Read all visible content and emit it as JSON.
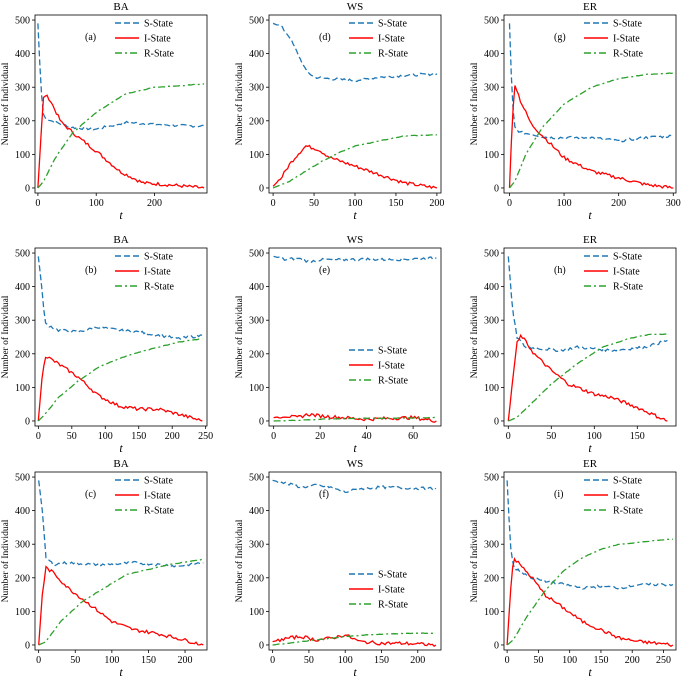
{
  "figure": {
    "ylabel_all": "Number of Individual",
    "xlabel_all": "t"
  },
  "legend_labels": [
    "S-State",
    "I-State",
    "R-State"
  ],
  "colors": {
    "S": "#1f77b4",
    "I": "#ff0000",
    "R": "#2ca02c"
  },
  "chart_data": [
    {
      "type": "line",
      "title": "BA",
      "panel_label": "(a)",
      "xlabel": "t",
      "ylabel": "Number of Individual",
      "xlim": [
        -5,
        290
      ],
      "ylim": [
        -15,
        515
      ],
      "xticks": [
        0,
        100,
        200
      ],
      "yticks": [
        0,
        100,
        200,
        300,
        400,
        500
      ],
      "legend": "top-right",
      "series": [
        {
          "name": "S-State",
          "style": "dashed",
          "x": [
            0,
            5,
            10,
            30,
            60,
            100,
            150,
            200,
            250,
            285
          ],
          "values": [
            490,
            300,
            210,
            195,
            180,
            175,
            195,
            190,
            185,
            185
          ]
        },
        {
          "name": "I-State",
          "style": "solid",
          "x": [
            0,
            5,
            10,
            20,
            40,
            70,
            100,
            140,
            180,
            220,
            285
          ],
          "values": [
            0,
            150,
            280,
            265,
            195,
            150,
            110,
            50,
            15,
            10,
            0
          ]
        },
        {
          "name": "R-State",
          "style": "dashdot",
          "x": [
            0,
            10,
            30,
            60,
            100,
            150,
            200,
            250,
            285
          ],
          "values": [
            0,
            20,
            90,
            165,
            225,
            280,
            300,
            305,
            310
          ]
        }
      ]
    },
    {
      "type": "line",
      "title": "WS",
      "panel_label": "(d)",
      "xlabel": "t",
      "ylabel": "Number of Individual",
      "xlim": [
        -5,
        205
      ],
      "ylim": [
        -15,
        515
      ],
      "xticks": [
        0,
        50,
        100,
        150,
        200
      ],
      "yticks": [
        0,
        100,
        200,
        300,
        400,
        500
      ],
      "legend": "top-right",
      "series": [
        {
          "name": "S-State",
          "style": "dashed",
          "x": [
            0,
            10,
            20,
            30,
            40,
            50,
            70,
            100,
            130,
            160,
            200
          ],
          "values": [
            490,
            480,
            450,
            400,
            350,
            330,
            325,
            320,
            330,
            335,
            340
          ]
        },
        {
          "name": "I-State",
          "style": "solid",
          "x": [
            0,
            10,
            20,
            30,
            40,
            55,
            70,
            100,
            130,
            160,
            200
          ],
          "values": [
            5,
            30,
            70,
            100,
            125,
            115,
            90,
            65,
            40,
            15,
            0
          ]
        },
        {
          "name": "R-State",
          "style": "dashdot",
          "x": [
            0,
            20,
            40,
            60,
            80,
            100,
            130,
            160,
            200
          ],
          "values": [
            0,
            20,
            50,
            80,
            105,
            125,
            140,
            155,
            158
          ]
        }
      ]
    },
    {
      "type": "line",
      "title": "ER",
      "panel_label": "(g)",
      "xlabel": "t",
      "ylabel": "Number of Individual",
      "xlim": [
        -10,
        305
      ],
      "ylim": [
        -15,
        515
      ],
      "xticks": [
        0,
        100,
        200,
        300
      ],
      "yticks": [
        0,
        100,
        200,
        300,
        400,
        500
      ],
      "legend": "top-right",
      "series": [
        {
          "name": "S-State",
          "style": "dashed",
          "x": [
            0,
            5,
            10,
            20,
            40,
            70,
            100,
            150,
            200,
            250,
            300
          ],
          "values": [
            490,
            260,
            180,
            165,
            160,
            150,
            150,
            150,
            140,
            150,
            155
          ]
        },
        {
          "name": "I-State",
          "style": "solid",
          "x": [
            0,
            5,
            10,
            20,
            40,
            70,
            100,
            150,
            200,
            250,
            300
          ],
          "values": [
            0,
            200,
            310,
            260,
            190,
            140,
            90,
            50,
            30,
            10,
            0
          ]
        },
        {
          "name": "R-State",
          "style": "dashdot",
          "x": [
            0,
            10,
            30,
            60,
            100,
            150,
            200,
            250,
            300
          ],
          "values": [
            0,
            20,
            100,
            180,
            250,
            300,
            325,
            338,
            342
          ]
        }
      ]
    },
    {
      "type": "line",
      "title": "BA",
      "panel_label": "(b)",
      "xlabel": "t",
      "ylabel": "Number of Individual",
      "xlim": [
        -5,
        252
      ],
      "ylim": [
        -15,
        515
      ],
      "xticks": [
        0,
        50,
        100,
        150,
        200,
        250
      ],
      "yticks": [
        0,
        100,
        200,
        300,
        400,
        500
      ],
      "legend": "top-right",
      "series": [
        {
          "name": "S-State",
          "style": "dashed",
          "x": [
            0,
            5,
            10,
            30,
            60,
            90,
            120,
            150,
            180,
            210,
            245
          ],
          "values": [
            490,
            400,
            290,
            270,
            265,
            280,
            270,
            265,
            255,
            245,
            255
          ]
        },
        {
          "name": "I-State",
          "style": "solid",
          "x": [
            0,
            5,
            10,
            30,
            60,
            90,
            120,
            150,
            180,
            210,
            245
          ],
          "values": [
            0,
            120,
            195,
            170,
            130,
            75,
            45,
            35,
            35,
            20,
            0
          ]
        },
        {
          "name": "R-State",
          "style": "dashdot",
          "x": [
            0,
            10,
            30,
            60,
            90,
            120,
            150,
            180,
            210,
            245
          ],
          "values": [
            0,
            20,
            70,
            120,
            160,
            185,
            205,
            220,
            235,
            245
          ]
        }
      ]
    },
    {
      "type": "line",
      "title": "WS",
      "panel_label": "(e)",
      "xlabel": "t",
      "ylabel": "Number of Individual",
      "xlim": [
        -2,
        72
      ],
      "ylim": [
        -15,
        515
      ],
      "xticks": [
        0,
        20,
        40,
        60
      ],
      "yticks": [
        0,
        100,
        200,
        300,
        400,
        500
      ],
      "legend": "center-right",
      "series": [
        {
          "name": "S-State",
          "style": "dashed",
          "x": [
            0,
            5,
            10,
            15,
            20,
            30,
            40,
            50,
            60,
            70
          ],
          "values": [
            490,
            480,
            485,
            475,
            480,
            480,
            482,
            480,
            483,
            485
          ]
        },
        {
          "name": "I-State",
          "style": "solid",
          "x": [
            0,
            5,
            10,
            15,
            20,
            30,
            40,
            50,
            60,
            70
          ],
          "values": [
            10,
            15,
            10,
            20,
            15,
            10,
            5,
            8,
            10,
            0
          ]
        },
        {
          "name": "R-State",
          "style": "dashdot",
          "x": [
            0,
            10,
            20,
            30,
            40,
            50,
            60,
            70
          ],
          "values": [
            0,
            2,
            5,
            7,
            8,
            8,
            9,
            10
          ]
        }
      ]
    },
    {
      "type": "line",
      "title": "ER",
      "panel_label": "(h)",
      "xlabel": "t",
      "ylabel": "Number of Individual",
      "xlim": [
        -5,
        195
      ],
      "ylim": [
        -15,
        515
      ],
      "xticks": [
        0,
        50,
        100,
        150
      ],
      "yticks": [
        0,
        100,
        200,
        300,
        400,
        500
      ],
      "legend": "top-right",
      "series": [
        {
          "name": "S-State",
          "style": "dashed",
          "x": [
            0,
            5,
            10,
            20,
            40,
            60,
            80,
            100,
            120,
            140,
            160,
            185
          ],
          "values": [
            490,
            330,
            250,
            220,
            215,
            210,
            220,
            215,
            210,
            215,
            220,
            240
          ]
        },
        {
          "name": "I-State",
          "style": "solid",
          "x": [
            0,
            5,
            10,
            15,
            30,
            50,
            70,
            100,
            120,
            150,
            185
          ],
          "values": [
            0,
            120,
            230,
            255,
            200,
            150,
            110,
            80,
            70,
            40,
            0
          ]
        },
        {
          "name": "R-State",
          "style": "dashdot",
          "x": [
            0,
            10,
            30,
            50,
            80,
            110,
            140,
            165,
            185
          ],
          "values": [
            0,
            10,
            60,
            110,
            170,
            220,
            245,
            258,
            258
          ]
        }
      ]
    },
    {
      "type": "line",
      "title": "BA",
      "panel_label": "(c)",
      "xlabel": "t",
      "ylabel": "Number of Individual",
      "xlim": [
        -5,
        230
      ],
      "ylim": [
        -15,
        515
      ],
      "xticks": [
        0,
        50,
        100,
        150,
        200
      ],
      "yticks": [
        0,
        100,
        200,
        300,
        400,
        500
      ],
      "legend": "top-right",
      "series": [
        {
          "name": "S-State",
          "style": "dashed",
          "x": [
            0,
            5,
            10,
            20,
            40,
            70,
            100,
            130,
            160,
            190,
            225
          ],
          "values": [
            490,
            400,
            260,
            240,
            245,
            240,
            240,
            245,
            240,
            235,
            245
          ]
        },
        {
          "name": "I-State",
          "style": "solid",
          "x": [
            0,
            5,
            10,
            20,
            40,
            70,
            100,
            130,
            160,
            190,
            225
          ],
          "values": [
            0,
            150,
            230,
            215,
            170,
            120,
            70,
            45,
            35,
            20,
            0
          ]
        },
        {
          "name": "R-State",
          "style": "dashdot",
          "x": [
            0,
            10,
            30,
            60,
            90,
            120,
            150,
            180,
            210,
            225
          ],
          "values": [
            0,
            10,
            70,
            130,
            170,
            210,
            225,
            240,
            250,
            255
          ]
        }
      ]
    },
    {
      "type": "line",
      "title": "WS",
      "panel_label": "(f)",
      "xlabel": "t",
      "ylabel": "Number of Individual",
      "xlim": [
        -5,
        232
      ],
      "ylim": [
        -15,
        515
      ],
      "xticks": [
        0,
        50,
        100,
        150,
        200
      ],
      "yticks": [
        0,
        100,
        200,
        300,
        400,
        500
      ],
      "legend": "center-right",
      "series": [
        {
          "name": "S-State",
          "style": "dashed",
          "x": [
            0,
            10,
            20,
            40,
            60,
            80,
            100,
            120,
            150,
            180,
            225
          ],
          "values": [
            490,
            485,
            480,
            470,
            475,
            470,
            455,
            465,
            470,
            468,
            465
          ]
        },
        {
          "name": "I-State",
          "style": "solid",
          "x": [
            0,
            10,
            20,
            40,
            60,
            80,
            100,
            120,
            150,
            180,
            225
          ],
          "values": [
            10,
            15,
            20,
            25,
            15,
            20,
            30,
            10,
            5,
            5,
            0
          ]
        },
        {
          "name": "R-State",
          "style": "dashdot",
          "x": [
            0,
            20,
            40,
            60,
            80,
            100,
            130,
            160,
            200,
            225
          ],
          "values": [
            0,
            5,
            10,
            15,
            20,
            25,
            30,
            33,
            35,
            35
          ]
        }
      ]
    },
    {
      "type": "line",
      "title": "ER",
      "panel_label": "(i)",
      "xlabel": "t",
      "ylabel": "Number of Individual",
      "xlim": [
        -5,
        270
      ],
      "ylim": [
        -15,
        515
      ],
      "xticks": [
        0,
        50,
        100,
        150,
        200,
        250
      ],
      "yticks": [
        0,
        100,
        200,
        300,
        400,
        500
      ],
      "legend": "top-right",
      "series": [
        {
          "name": "S-State",
          "style": "dashed",
          "x": [
            0,
            5,
            10,
            20,
            40,
            60,
            90,
            120,
            150,
            180,
            210,
            240,
            265
          ],
          "values": [
            490,
            300,
            230,
            220,
            200,
            190,
            180,
            170,
            175,
            170,
            180,
            180,
            180
          ]
        },
        {
          "name": "I-State",
          "style": "solid",
          "x": [
            0,
            5,
            10,
            20,
            40,
            60,
            90,
            120,
            150,
            180,
            210,
            240,
            265
          ],
          "values": [
            0,
            150,
            260,
            240,
            200,
            150,
            110,
            70,
            45,
            20,
            10,
            5,
            0
          ]
        },
        {
          "name": "R-State",
          "style": "dashdot",
          "x": [
            0,
            10,
            30,
            60,
            90,
            120,
            150,
            180,
            210,
            240,
            265
          ],
          "values": [
            0,
            15,
            80,
            160,
            220,
            260,
            285,
            300,
            305,
            312,
            315
          ]
        }
      ]
    }
  ]
}
